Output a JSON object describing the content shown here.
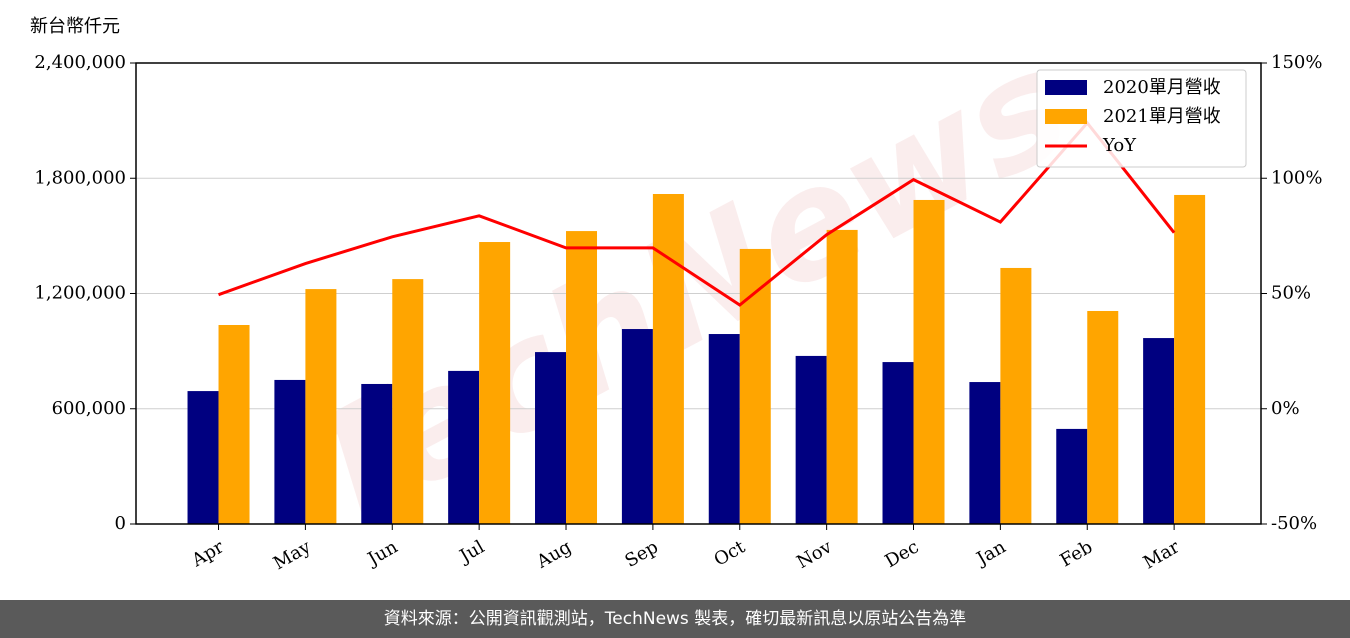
{
  "chart_data": {
    "type": "bar_line",
    "y_label": "新台幣仟元",
    "watermark": "TechNews",
    "categories": [
      "Apr",
      "May",
      "Jun",
      "Jul",
      "Aug",
      "Sep",
      "Oct",
      "Nov",
      "Dec",
      "Jan",
      "Feb",
      "Mar"
    ],
    "series": [
      {
        "name": "2020單月營收",
        "color": "#000080",
        "type": "bar",
        "values": [
          692000,
          750000,
          729000,
          797000,
          895000,
          1015000,
          989000,
          875000,
          843000,
          739000,
          495000,
          968000
        ]
      },
      {
        "name": "2021單月營收",
        "color": "#ffa500",
        "type": "bar",
        "values": [
          1036000,
          1223000,
          1275000,
          1468000,
          1525000,
          1718000,
          1432000,
          1531000,
          1687000,
          1333000,
          1109000,
          1713000
        ]
      },
      {
        "name": "YoY",
        "color": "#ff0000",
        "type": "line",
        "axis": "y2",
        "values": [
          49.5,
          63,
          74.6,
          83.7,
          69.8,
          69.8,
          45,
          75.5,
          99.4,
          81,
          124,
          76.4
        ]
      }
    ],
    "ylim": [
      0,
      2400000
    ],
    "yticks": [
      {
        "value": 0,
        "label": "0"
      },
      {
        "value": 600000,
        "label": "600,000"
      },
      {
        "value": 1200000,
        "label": "1,200,000"
      },
      {
        "value": 1800000,
        "label": "1,800,000"
      },
      {
        "value": 2400000,
        "label": "2,400,000"
      }
    ],
    "y2lim": [
      -50,
      150
    ],
    "y2ticks": [
      {
        "value": -50,
        "label": "-50%"
      },
      {
        "value": 0,
        "label": "0%"
      },
      {
        "value": 50,
        "label": "50%"
      },
      {
        "value": 100,
        "label": "100%"
      },
      {
        "value": 150,
        "label": "150%"
      }
    ],
    "grid": true,
    "legend": "upper right"
  },
  "footer": "資料來源：公開資訊觀測站，TechNews 製表，確切最新訊息以原站公告為準"
}
